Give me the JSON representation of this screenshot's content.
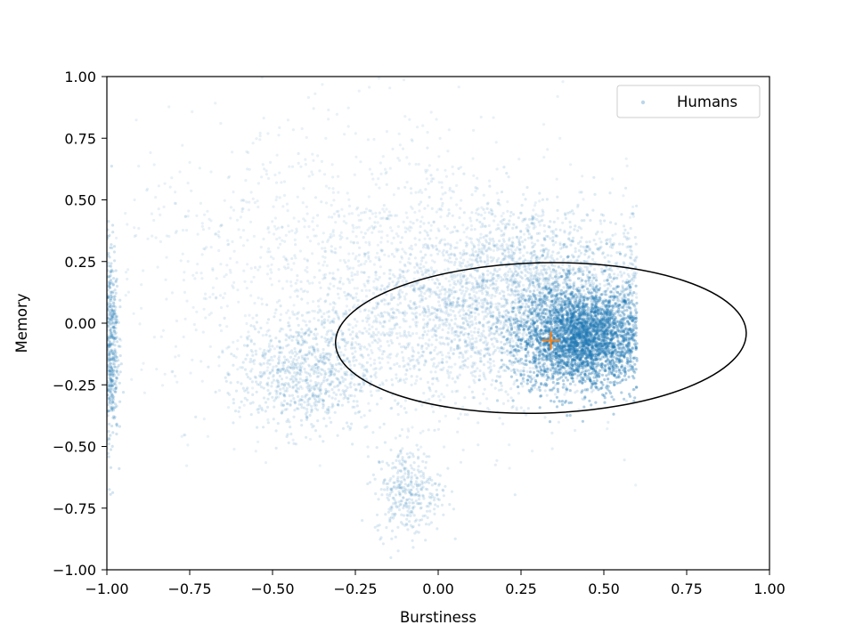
{
  "chart_data": {
    "type": "scatter",
    "xlabel": "Burstiness",
    "ylabel": "Memory",
    "xlim": [
      -1.0,
      1.0
    ],
    "ylim": [
      -1.0,
      1.0
    ],
    "xticks": [
      "−1.00",
      "−0.75",
      "−0.50",
      "−0.25",
      "0.00",
      "0.25",
      "0.50",
      "0.75",
      "1.00"
    ],
    "yticks": [
      "1.00",
      "0.75",
      "0.50",
      "0.25",
      "0.00",
      "−0.25",
      "−0.50",
      "−0.75",
      "−1.00"
    ],
    "xtick_values": [
      -1.0,
      -0.75,
      -0.5,
      -0.25,
      0.0,
      0.25,
      0.5,
      0.75,
      1.0
    ],
    "ytick_values": [
      1.0,
      0.75,
      0.5,
      0.25,
      0.0,
      -0.25,
      -0.5,
      -0.75,
      -1.0
    ],
    "grid": false,
    "legend": {
      "position": "top-right",
      "entries": [
        {
          "label": "Humans",
          "color": "#1f77b4"
        }
      ]
    },
    "series": [
      {
        "name": "Humans",
        "color": "#1f77b4",
        "marker": "dot",
        "clusters": [
          {
            "center": [
              0.43,
              -0.06
            ],
            "spread": [
              0.09,
              0.1
            ],
            "weight": 0.32,
            "alpha": 0.35
          },
          {
            "center": [
              0.33,
              0.12
            ],
            "spread": [
              0.17,
              0.17
            ],
            "weight": 0.18,
            "alpha": 0.15
          },
          {
            "center": [
              0.05,
              0.05
            ],
            "spread": [
              0.2,
              0.2
            ],
            "weight": 0.18,
            "alpha": 0.12
          },
          {
            "center": [
              -0.4,
              -0.2
            ],
            "spread": [
              0.1,
              0.12
            ],
            "weight": 0.09,
            "alpha": 0.15
          },
          {
            "center": [
              -0.09,
              -0.68
            ],
            "spread": [
              0.05,
              0.09
            ],
            "weight": 0.04,
            "alpha": 0.15
          },
          {
            "center": [
              -0.99,
              -0.08
            ],
            "spread": [
              0.012,
              0.2
            ],
            "weight": 0.06,
            "alpha": 0.2
          },
          {
            "center": [
              -0.3,
              0.25
            ],
            "spread": [
              0.35,
              0.3
            ],
            "weight": 0.13,
            "alpha": 0.1
          }
        ]
      }
    ],
    "annotations": [
      {
        "type": "ellipse",
        "center": [
          0.31,
          -0.06
        ],
        "width": 1.24,
        "height": 0.61,
        "angle_deg": 1.5,
        "color": "#000000"
      },
      {
        "type": "marker",
        "shape": "plus",
        "position": [
          0.34,
          -0.07
        ],
        "color": "#ff7f0e"
      }
    ]
  }
}
